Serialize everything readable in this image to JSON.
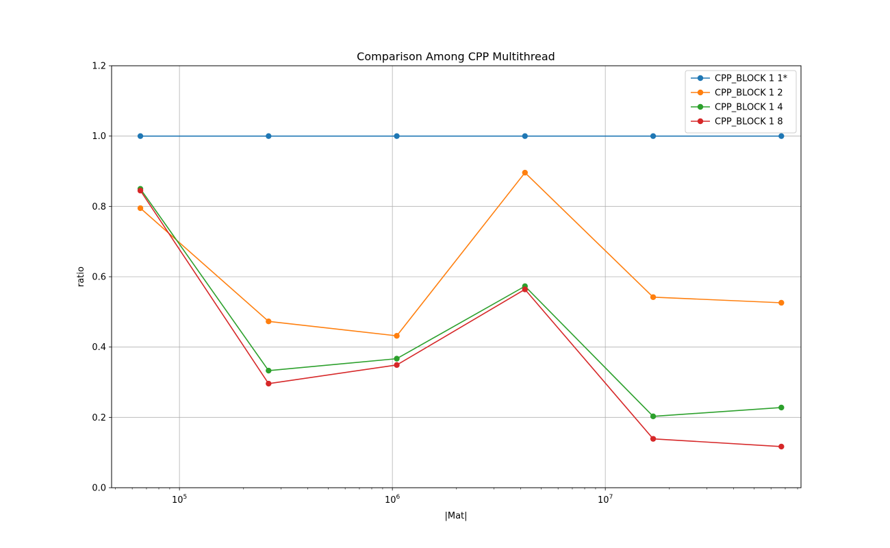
{
  "chart_data": {
    "type": "line",
    "title": "Comparison Among CPP Multithread",
    "xlabel": "|Mat|",
    "ylabel": "ratio",
    "xscale": "log",
    "xlim": [
      48000,
      83000000
    ],
    "ylim": [
      0,
      1.2
    ],
    "grid": true,
    "legend_position": "top-right",
    "x": [
      65536,
      262144,
      1048576,
      4194304,
      16777216,
      67108864
    ],
    "xticks": [
      {
        "value": 100000,
        "base": "10",
        "exp": "5"
      },
      {
        "value": 1000000,
        "base": "10",
        "exp": "6"
      },
      {
        "value": 10000000,
        "base": "10",
        "exp": "7"
      }
    ],
    "yticks": [
      "0.0",
      "0.2",
      "0.4",
      "0.6",
      "0.8",
      "1.0",
      "1.2"
    ],
    "series": [
      {
        "name": "CPP_BLOCK 1 1*",
        "color": "#1f77b4",
        "values": [
          1.0,
          1.0,
          1.0,
          1.0,
          1.0,
          1.0
        ]
      },
      {
        "name": "CPP_BLOCK 1 2",
        "color": "#ff7f0e",
        "values": [
          0.795,
          0.473,
          0.432,
          0.896,
          0.542,
          0.526
        ]
      },
      {
        "name": "CPP_BLOCK 1 4",
        "color": "#2ca02c",
        "values": [
          0.85,
          0.333,
          0.367,
          0.573,
          0.203,
          0.228
        ]
      },
      {
        "name": "CPP_BLOCK 1 8",
        "color": "#d62728",
        "values": [
          0.845,
          0.296,
          0.349,
          0.564,
          0.139,
          0.117
        ]
      }
    ]
  }
}
